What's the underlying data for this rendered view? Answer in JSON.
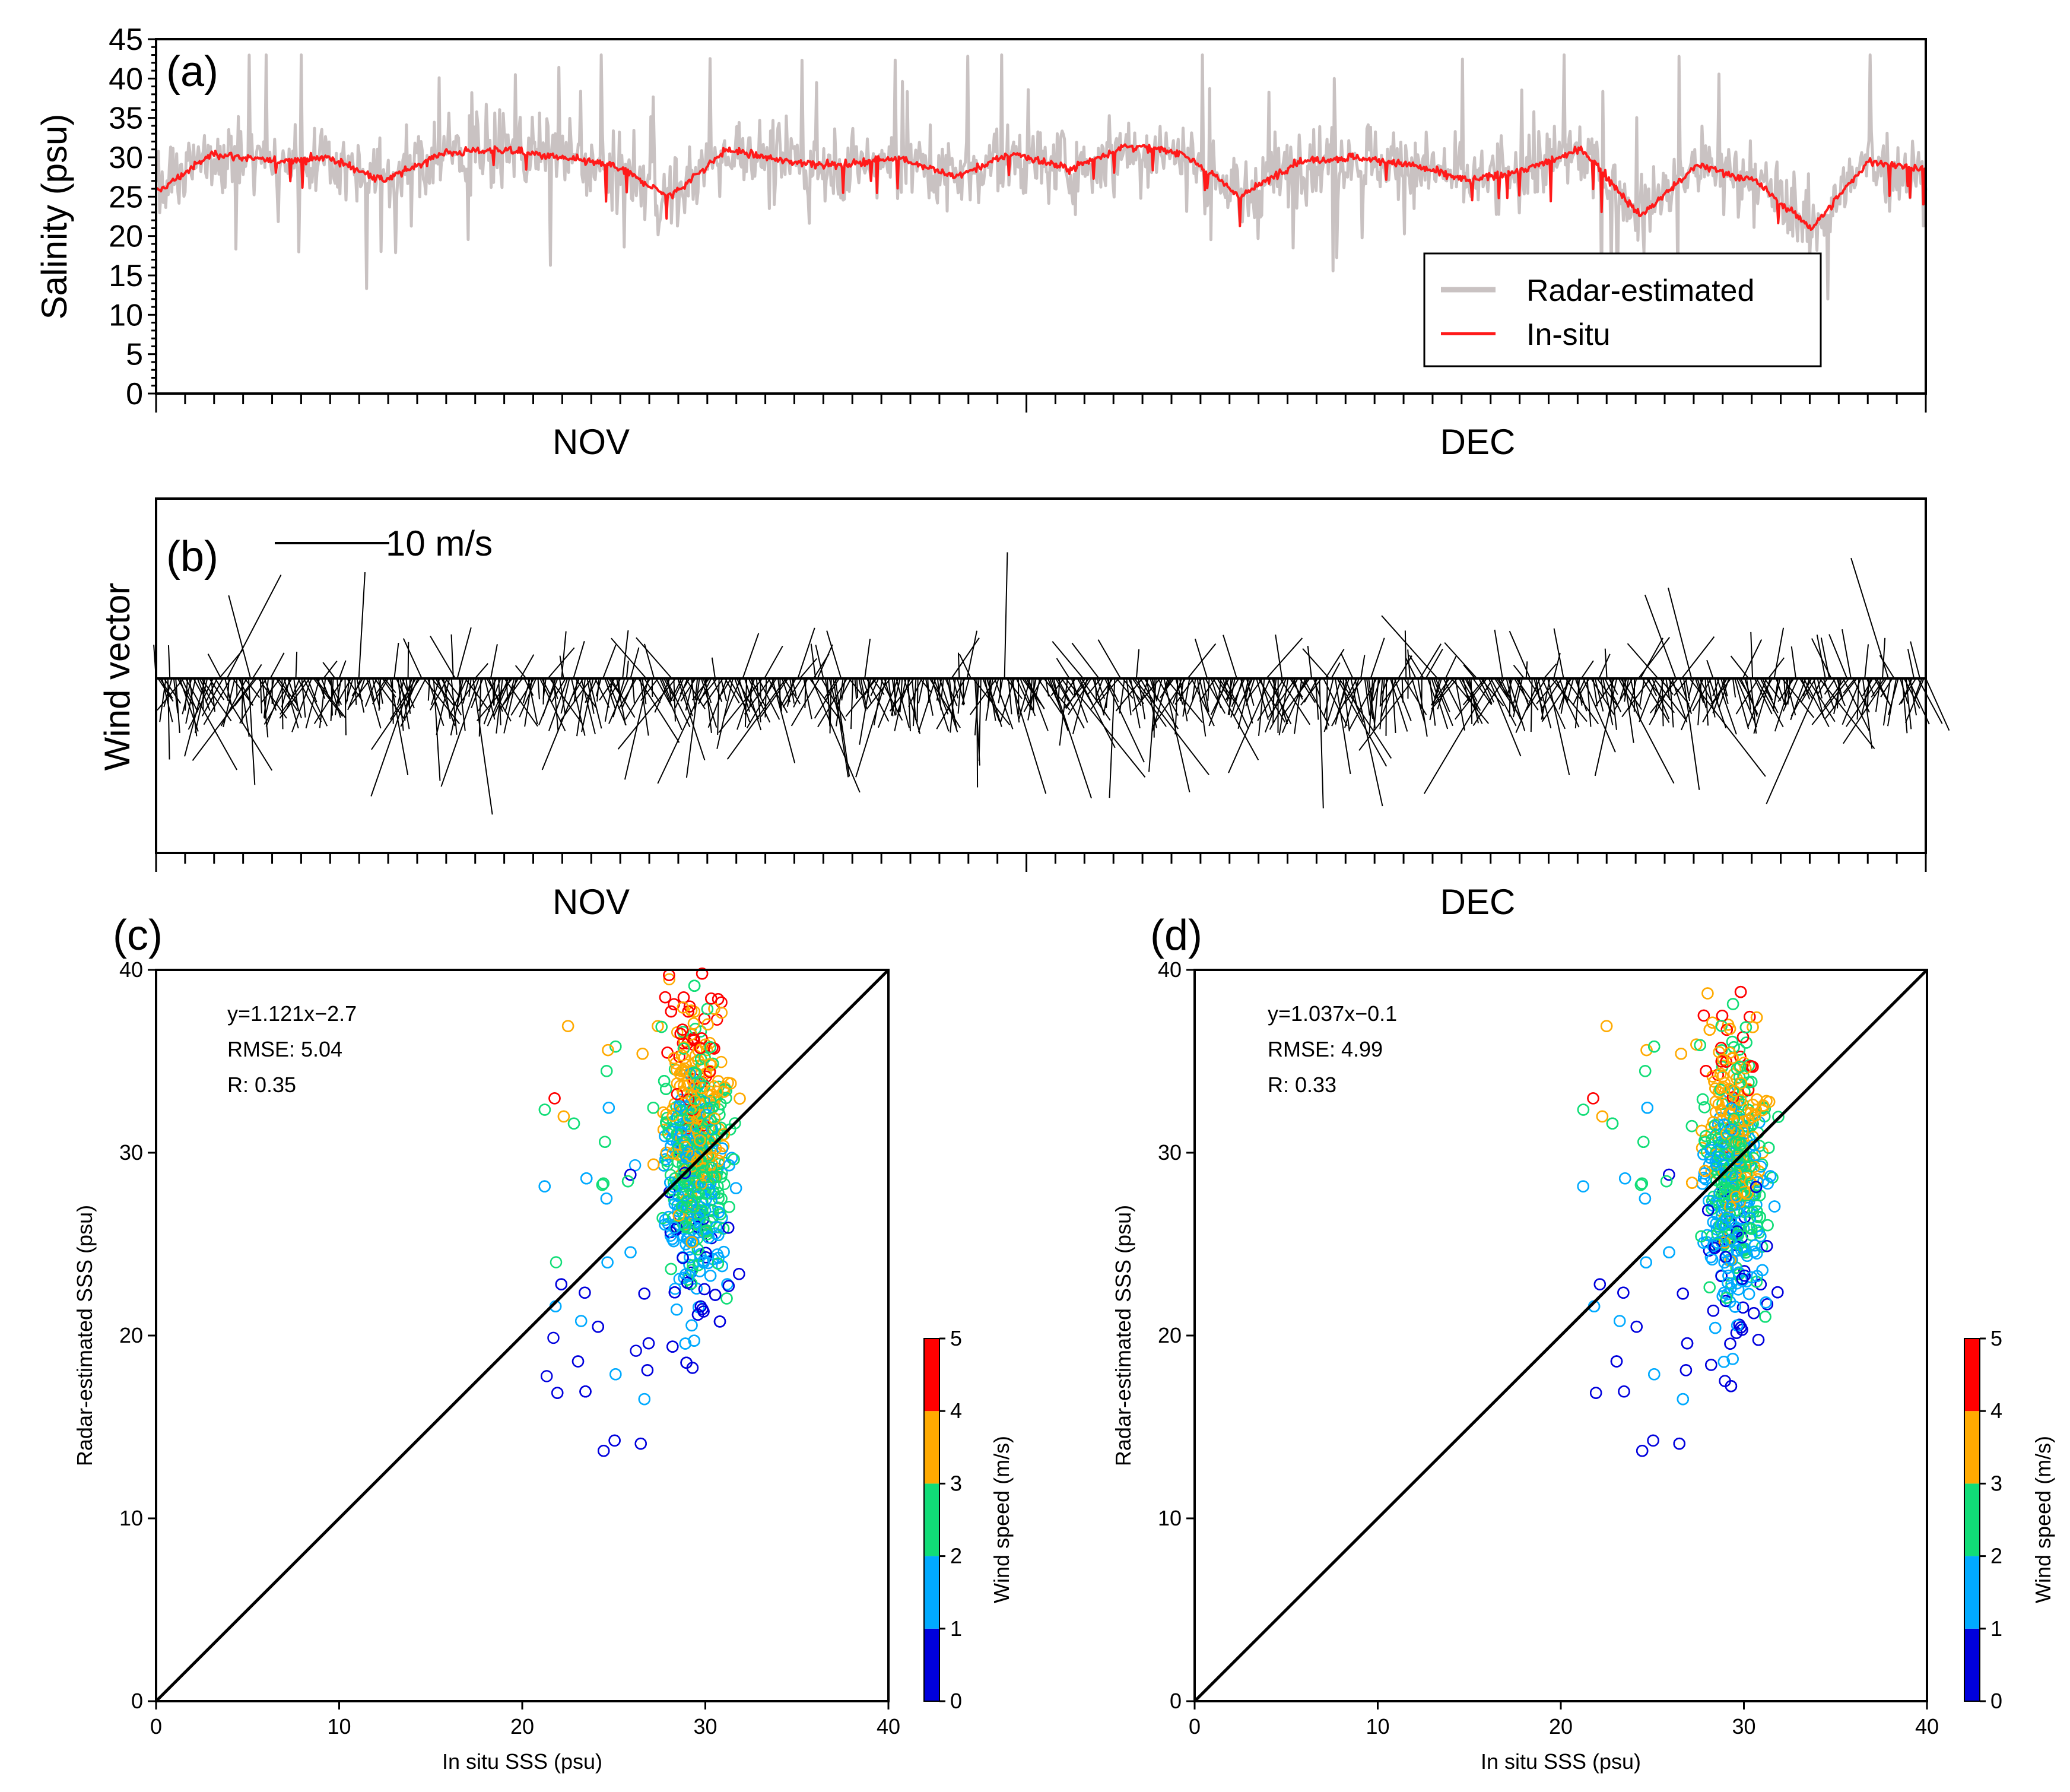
{
  "chart_data": [
    {
      "panel": "(a)",
      "type": "line",
      "ylabel": "Salinity (psu)",
      "ylim": [
        0,
        45
      ],
      "yticks": [
        "0",
        "5",
        "10",
        "15",
        "20",
        "25",
        "30",
        "35",
        "40",
        "45"
      ],
      "month_labels": [
        "NOV",
        "DEC"
      ],
      "legend": [
        "Radar-estimated",
        "In-situ"
      ],
      "legend_position": "lower-right",
      "series": [
        {
          "name": "Radar-estimated",
          "color": "#c9c2c2",
          "mean": 30,
          "values_note": "hourly, range approx 13–42"
        },
        {
          "name": "In-situ",
          "color": "#ff1a1a",
          "mean": 29.5,
          "values_note": "hourly, range approx 21–31.5"
        }
      ],
      "in_situ_anchor_values": [
        25.5,
        30.5,
        29.5,
        30,
        27,
        30.5,
        31,
        30,
        29,
        25,
        31,
        29.5,
        29,
        30,
        27.5,
        30.5,
        28.5,
        31.5,
        30.5,
        25,
        29.5,
        30,
        29,
        27,
        28.5,
        31,
        22.5,
        29,
        27,
        21,
        29.5,
        28.5
      ]
    },
    {
      "panel": "(b)",
      "type": "vector",
      "ylabel": "Wind vector",
      "scale_label": "10 m/s",
      "month_labels": [
        "NOV",
        "DEC"
      ]
    },
    {
      "panel": "(c)",
      "type": "scatter",
      "xlabel": "In situ SSS (psu)",
      "ylabel": "Radar-estimated SSS (psu)",
      "xlim": [
        0,
        40
      ],
      "ylim": [
        0,
        40
      ],
      "ticks": [
        "0",
        "10",
        "20",
        "30",
        "40"
      ],
      "fit": "y=1.121x−2.7",
      "rmse": "RMSE: 5.04",
      "r": "R: 0.35",
      "cluster": {
        "x_center": 29.5,
        "x_spread": 1.8,
        "y_center": 30,
        "y_spread": 5.5
      }
    },
    {
      "panel": "(d)",
      "type": "scatter",
      "xlabel": "In situ SSS (psu)",
      "ylabel": "Radar-estimated SSS (psu)",
      "xlim": [
        0,
        40
      ],
      "ylim": [
        0,
        40
      ],
      "ticks": [
        "0",
        "10",
        "20",
        "30",
        "40"
      ],
      "fit": "y=1.037x−0.1",
      "rmse": "RMSE: 4.99",
      "r": "R: 0.33",
      "cluster": {
        "x_center": 29.5,
        "x_spread": 1.8,
        "y_center": 29,
        "y_spread": 5.5
      }
    }
  ],
  "colorbar": {
    "label": "Wind speed (m/s)",
    "ticks": [
      "0",
      "1",
      "2",
      "3",
      "4",
      "5"
    ],
    "colors": [
      "#0000dd",
      "#00aaff",
      "#11dd77",
      "#ffaa00",
      "#ff0000"
    ]
  }
}
